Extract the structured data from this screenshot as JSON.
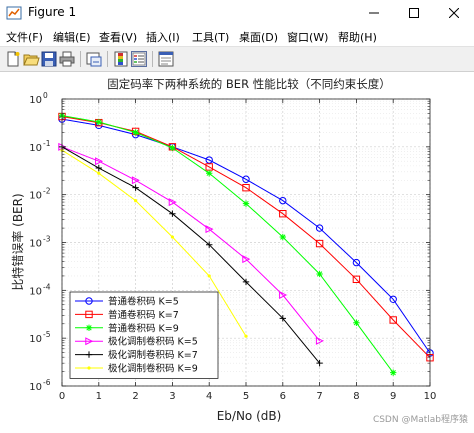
{
  "window": {
    "title": "Figure 1"
  },
  "menu": [
    "文件(F)",
    "编辑(E)",
    "查看(V)",
    "插入(I)",
    "工具(T)",
    "桌面(D)",
    "窗口(W)",
    "帮助(H)"
  ],
  "toolbar": [
    {
      "icon": "new-figure-icon"
    },
    {
      "icon": "open-file-icon"
    },
    {
      "icon": "save-icon"
    },
    {
      "icon": "print-icon"
    },
    {
      "icon": "link-plot-icon"
    },
    {
      "icon": "colorbar-icon"
    },
    {
      "icon": "legend-icon"
    },
    {
      "icon": "property-editor-icon"
    }
  ],
  "watermark": "CSDN @Matlab程序猿",
  "chart_data": {
    "type": "line",
    "title": "固定码率下两种系统的 BER 性能比较（不同约束长度）",
    "xlabel": "Eb/No (dB)",
    "ylabel": "比特错误率 (BER)",
    "xlim": [
      0,
      10
    ],
    "ylim": [
      1e-06,
      1
    ],
    "yscale": "log",
    "grid": true,
    "legend_position": "bottom-left",
    "x_ticks": [
      "0",
      "1",
      "2",
      "3",
      "4",
      "5",
      "6",
      "7",
      "8",
      "9",
      "10"
    ],
    "y_ticks": [
      {
        "base": "10",
        "exp": "0"
      },
      {
        "base": "10",
        "exp": "-1"
      },
      {
        "base": "10",
        "exp": "-2"
      },
      {
        "base": "10",
        "exp": "-3"
      },
      {
        "base": "10",
        "exp": "-4"
      },
      {
        "base": "10",
        "exp": "-5"
      },
      {
        "base": "10",
        "exp": "-6"
      }
    ],
    "series": [
      {
        "name": "普通卷积码 K=5",
        "color": "#0000ff",
        "marker": "circle",
        "x": [
          0,
          1,
          2,
          3,
          4,
          5,
          6,
          7,
          8,
          9,
          10
        ],
        "y": [
          0.38,
          0.28,
          0.18,
          0.1,
          0.053,
          0.021,
          0.0075,
          0.002,
          0.00038,
          6.5e-05,
          4.9e-06
        ]
      },
      {
        "name": "普通卷积码 K=7",
        "color": "#ff0000",
        "marker": "square",
        "x": [
          0,
          1,
          2,
          3,
          4,
          5,
          6,
          7,
          8,
          9,
          10
        ],
        "y": [
          0.43,
          0.32,
          0.21,
          0.1,
          0.038,
          0.014,
          0.004,
          0.00095,
          0.00017,
          2.4e-05,
          3.9e-06
        ]
      },
      {
        "name": "普通卷积码 K=9",
        "color": "#00ff00",
        "marker": "star",
        "x": [
          0,
          1,
          2,
          3,
          4,
          5,
          6,
          7,
          8,
          9
        ],
        "y": [
          0.45,
          0.33,
          0.2,
          0.095,
          0.028,
          0.0065,
          0.0013,
          0.00022,
          2.1e-05,
          1.9e-06
        ]
      },
      {
        "name": "极化调制卷积码 K=5",
        "color": "#ff00ff",
        "marker": "triangle-right",
        "x": [
          0,
          1,
          2,
          3,
          4,
          5,
          6,
          7
        ],
        "y": [
          0.1,
          0.05,
          0.02,
          0.007,
          0.0019,
          0.00045,
          8e-05,
          8.8e-06
        ]
      },
      {
        "name": "极化调制卷积码 K=7",
        "color": "#000000",
        "marker": "plus",
        "x": [
          0,
          1,
          2,
          3,
          4,
          5,
          6,
          7
        ],
        "y": [
          0.1,
          0.036,
          0.014,
          0.004,
          0.0009,
          0.00015,
          2.6e-05,
          3e-06
        ]
      },
      {
        "name": "极化调制卷积码 K=9",
        "color": "#ffff00",
        "marker": "point",
        "x": [
          0,
          1,
          2,
          3,
          4,
          5
        ],
        "y": [
          0.085,
          0.028,
          0.0075,
          0.0013,
          0.0002,
          1.1e-05
        ]
      }
    ]
  }
}
